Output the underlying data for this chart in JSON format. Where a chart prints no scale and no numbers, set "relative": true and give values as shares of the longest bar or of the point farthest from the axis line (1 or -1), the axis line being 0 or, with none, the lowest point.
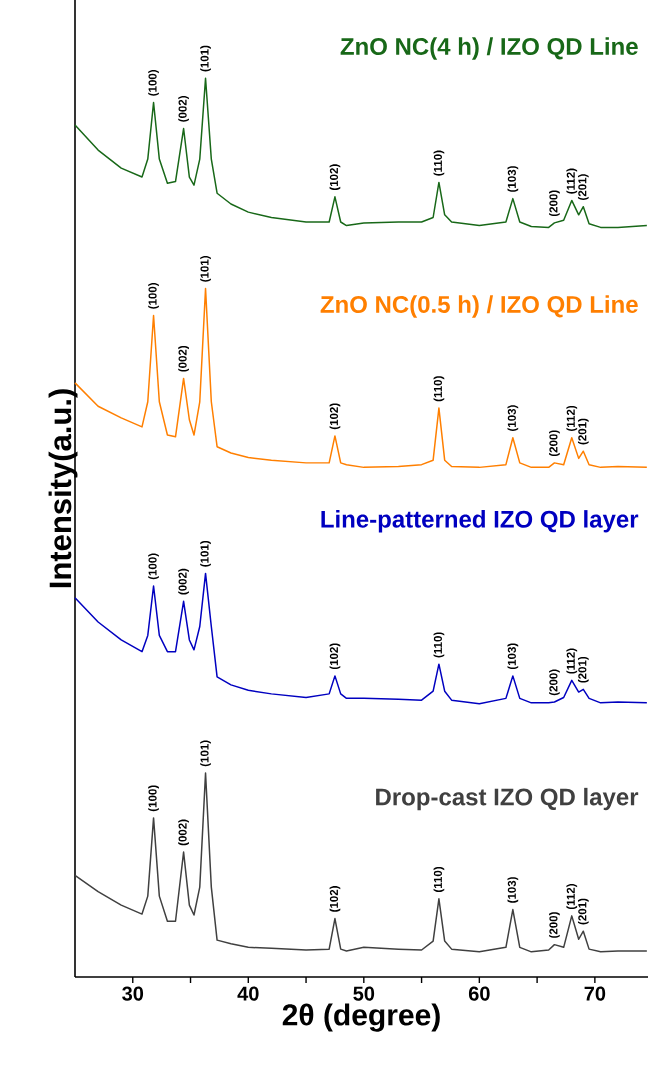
{
  "chart_data": {
    "type": "line",
    "relative": true,
    "legend": false,
    "xlabel": "2θ (degree)",
    "ylabel": "Intensity(a.u.)",
    "xlim": [
      25,
      74.6
    ],
    "xticks": [
      30,
      {
        "value": 35,
        "label": null
      },
      40,
      {
        "value": 45,
        "label": null
      },
      50,
      {
        "value": 55,
        "label": null
      },
      60,
      {
        "value": 65,
        "label": null
      },
      70
    ],
    "x": [
      25,
      27,
      29,
      30.8,
      31.3,
      31.8,
      32.3,
      33.0,
      33.7,
      34.4,
      34.9,
      35.3,
      35.8,
      36.3,
      36.8,
      37.3,
      38.5,
      40,
      42,
      45,
      47.0,
      47.5,
      48.0,
      48.5,
      50,
      53,
      55,
      56.0,
      56.5,
      57.0,
      57.6,
      60,
      62.3,
      62.9,
      63.5,
      64.5,
      66,
      66.5,
      67.3,
      68.0,
      68.6,
      69.0,
      69.5,
      70.5,
      72,
      74.5
    ],
    "series": [
      {
        "name": "ZnO NC(4 h) / IZO QD Line",
        "color": "#186818",
        "values": [
          0.948,
          0.92,
          0.9,
          0.89,
          0.91,
          0.973,
          0.91,
          0.883,
          0.885,
          0.944,
          0.89,
          0.881,
          0.91,
          1.0,
          0.91,
          0.872,
          0.86,
          0.851,
          0.845,
          0.84,
          0.84,
          0.868,
          0.84,
          0.836,
          0.839,
          0.84,
          0.84,
          0.845,
          0.884,
          0.848,
          0.84,
          0.836,
          0.84,
          0.866,
          0.84,
          0.835,
          0.834,
          0.839,
          0.842,
          0.864,
          0.848,
          0.857,
          0.838,
          0.834,
          0.834,
          0.836
        ]
      },
      {
        "name": "ZnO NC(0.5 h) / IZO QD Line",
        "color": "#ff7f00",
        "values": [
          0.661,
          0.635,
          0.622,
          0.612,
          0.64,
          0.736,
          0.64,
          0.603,
          0.601,
          0.666,
          0.62,
          0.603,
          0.64,
          0.766,
          0.64,
          0.59,
          0.583,
          0.578,
          0.575,
          0.572,
          0.572,
          0.602,
          0.572,
          0.57,
          0.567,
          0.568,
          0.57,
          0.575,
          0.633,
          0.575,
          0.568,
          0.567,
          0.57,
          0.6,
          0.572,
          0.567,
          0.567,
          0.572,
          0.57,
          0.6,
          0.577,
          0.585,
          0.57,
          0.567,
          0.568,
          0.567
        ]
      },
      {
        "name": "Line-patterned IZO QD layer",
        "color": "#0000c0",
        "values": [
          0.422,
          0.395,
          0.375,
          0.362,
          0.38,
          0.435,
          0.38,
          0.362,
          0.362,
          0.418,
          0.375,
          0.364,
          0.39,
          0.449,
          0.39,
          0.334,
          0.325,
          0.319,
          0.315,
          0.311,
          0.315,
          0.335,
          0.315,
          0.31,
          0.31,
          0.309,
          0.308,
          0.318,
          0.348,
          0.318,
          0.308,
          0.304,
          0.31,
          0.335,
          0.31,
          0.305,
          0.305,
          0.306,
          0.311,
          0.33,
          0.317,
          0.32,
          0.31,
          0.305,
          0.306,
          0.305
        ]
      },
      {
        "name": "Drop-cast IZO QD layer",
        "color": "#404040",
        "values": [
          0.113,
          0.095,
          0.08,
          0.07,
          0.09,
          0.177,
          0.09,
          0.062,
          0.062,
          0.139,
          0.08,
          0.069,
          0.1,
          0.227,
          0.1,
          0.041,
          0.037,
          0.033,
          0.032,
          0.03,
          0.031,
          0.065,
          0.031,
          0.029,
          0.033,
          0.031,
          0.03,
          0.04,
          0.087,
          0.04,
          0.031,
          0.028,
          0.033,
          0.075,
          0.033,
          0.028,
          0.03,
          0.036,
          0.033,
          0.068,
          0.042,
          0.051,
          0.031,
          0.028,
          0.029,
          0.029
        ]
      }
    ],
    "annotations": [
      {
        "text": "(100)",
        "x": 31.8,
        "y": 0.973
      },
      {
        "text": "(002)",
        "x": 34.4,
        "y": 0.944
      },
      {
        "text": "(101)",
        "x": 36.3,
        "y": 1.0
      },
      {
        "text": "(102)",
        "x": 47.5,
        "y": 0.868
      },
      {
        "text": "(110)",
        "x": 56.5,
        "y": 0.884
      },
      {
        "text": "(103)",
        "x": 62.9,
        "y": 0.866
      },
      {
        "text": "(200)",
        "x": 66.5,
        "y": 0.839
      },
      {
        "text": "(112)",
        "x": 68.0,
        "y": 0.864
      },
      {
        "text": "(201)",
        "x": 69.0,
        "y": 0.857
      },
      {
        "text": "(100)",
        "x": 31.8,
        "y": 0.736
      },
      {
        "text": "(002)",
        "x": 34.4,
        "y": 0.666
      },
      {
        "text": "(101)",
        "x": 36.3,
        "y": 0.766
      },
      {
        "text": "(102)",
        "x": 47.5,
        "y": 0.602
      },
      {
        "text": "(110)",
        "x": 56.5,
        "y": 0.633
      },
      {
        "text": "(103)",
        "x": 62.9,
        "y": 0.6
      },
      {
        "text": "(200)",
        "x": 66.5,
        "y": 0.572
      },
      {
        "text": "(112)",
        "x": 68.0,
        "y": 0.6
      },
      {
        "text": "(201)",
        "x": 69.0,
        "y": 0.585
      },
      {
        "text": "(100)",
        "x": 31.8,
        "y": 0.435
      },
      {
        "text": "(002)",
        "x": 34.4,
        "y": 0.418
      },
      {
        "text": "(101)",
        "x": 36.3,
        "y": 0.449
      },
      {
        "text": "(102)",
        "x": 47.5,
        "y": 0.335
      },
      {
        "text": "(110)",
        "x": 56.5,
        "y": 0.348
      },
      {
        "text": "(103)",
        "x": 62.9,
        "y": 0.335
      },
      {
        "text": "(200)",
        "x": 66.5,
        "y": 0.306
      },
      {
        "text": "(112)",
        "x": 68.0,
        "y": 0.33
      },
      {
        "text": "(201)",
        "x": 69.0,
        "y": 0.32
      },
      {
        "text": "(100)",
        "x": 31.8,
        "y": 0.177
      },
      {
        "text": "(002)",
        "x": 34.4,
        "y": 0.139
      },
      {
        "text": "(101)",
        "x": 36.3,
        "y": 0.227
      },
      {
        "text": "(102)",
        "x": 47.5,
        "y": 0.065
      },
      {
        "text": "(110)",
        "x": 56.5,
        "y": 0.087
      },
      {
        "text": "(103)",
        "x": 62.9,
        "y": 0.075
      },
      {
        "text": "(200)",
        "x": 66.5,
        "y": 0.036
      },
      {
        "text": "(112)",
        "x": 68.0,
        "y": 0.068
      },
      {
        "text": "(201)",
        "x": 69.0,
        "y": 0.051
      }
    ]
  }
}
